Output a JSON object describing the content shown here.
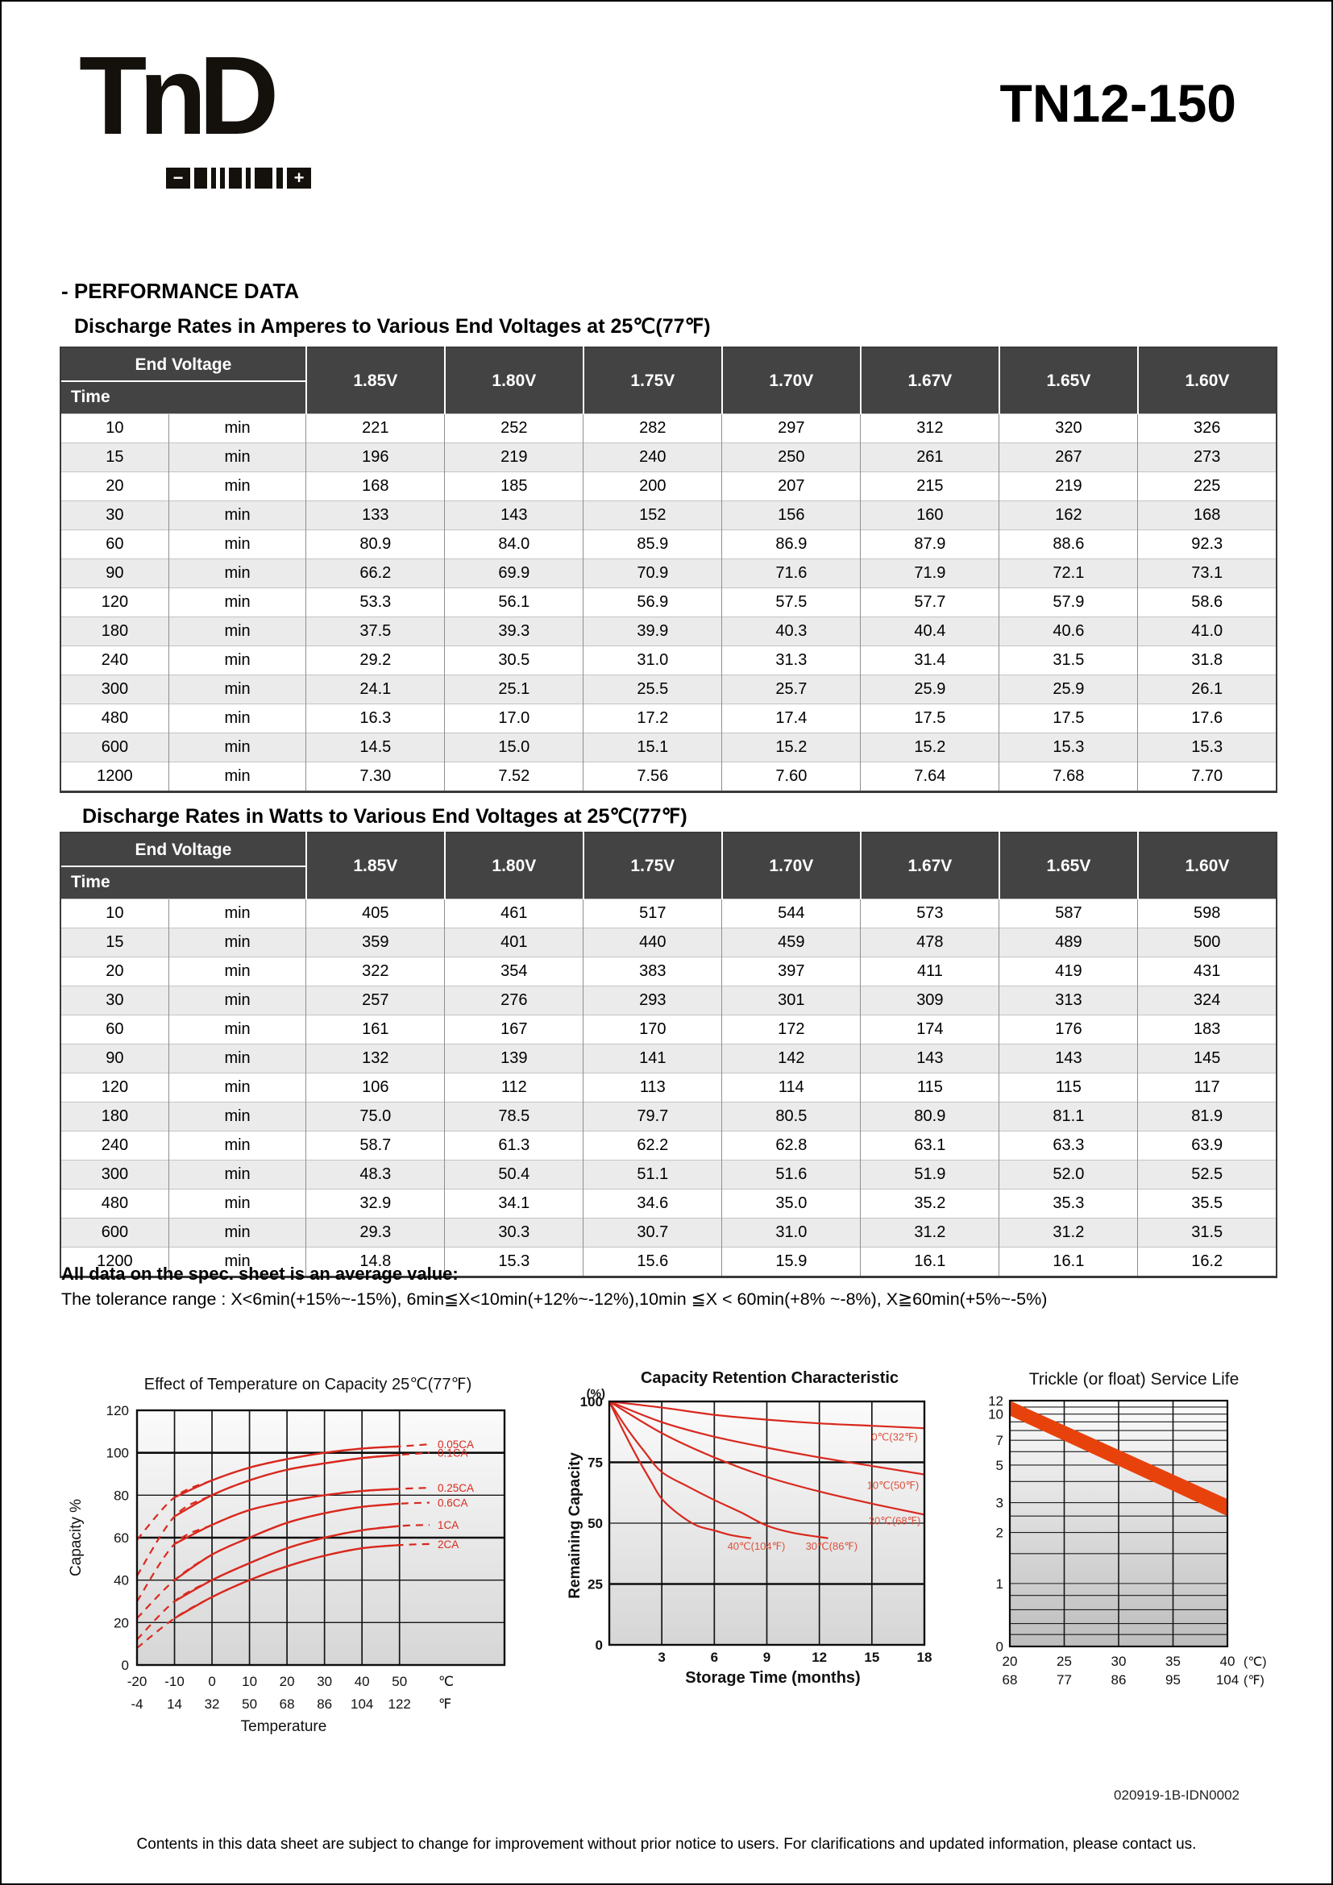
{
  "page": {
    "logo_text": "TnD",
    "logo_minus": "−",
    "logo_plus": "+",
    "product_code": "TN12-150",
    "section_heading": "- PERFORMANCE DATA"
  },
  "notes": {
    "average_line": "All data on the spec. sheet is an average value:",
    "tolerance_line": "The tolerance range : X<6min(+15%~-15%), 6min≦X<10min(+12%~-12%),10min  ≦X < 60min(+8% ~-8%), X≧60min(+5%~-5%)"
  },
  "footer": {
    "doc_number": "020919-1B-IDN0002",
    "disclaimer": "Contents in this data sheet are subject to change for improvement without prior notice to users. For clarifications and updated information, please contact us."
  },
  "tables": [
    {
      "title": "Discharge Rates in Amperes to Various End Voltages at 25℃(77℉)",
      "corner_top": "End Voltage",
      "corner_bottom": "Time",
      "columns": [
        "1.85V",
        "1.80V",
        "1.75V",
        "1.70V",
        "1.67V",
        "1.65V",
        "1.60V"
      ],
      "rows": [
        {
          "time": "10",
          "unit": "min",
          "values": [
            "221",
            "252",
            "282",
            "297",
            "312",
            "320",
            "326"
          ]
        },
        {
          "time": "15",
          "unit": "min",
          "values": [
            "196",
            "219",
            "240",
            "250",
            "261",
            "267",
            "273"
          ]
        },
        {
          "time": "20",
          "unit": "min",
          "values": [
            "168",
            "185",
            "200",
            "207",
            "215",
            "219",
            "225"
          ]
        },
        {
          "time": "30",
          "unit": "min",
          "values": [
            "133",
            "143",
            "152",
            "156",
            "160",
            "162",
            "168"
          ]
        },
        {
          "time": "60",
          "unit": "min",
          "values": [
            "80.9",
            "84.0",
            "85.9",
            "86.9",
            "87.9",
            "88.6",
            "92.3"
          ]
        },
        {
          "time": "90",
          "unit": "min",
          "values": [
            "66.2",
            "69.9",
            "70.9",
            "71.6",
            "71.9",
            "72.1",
            "73.1"
          ]
        },
        {
          "time": "120",
          "unit": "min",
          "values": [
            "53.3",
            "56.1",
            "56.9",
            "57.5",
            "57.7",
            "57.9",
            "58.6"
          ]
        },
        {
          "time": "180",
          "unit": "min",
          "values": [
            "37.5",
            "39.3",
            "39.9",
            "40.3",
            "40.4",
            "40.6",
            "41.0"
          ]
        },
        {
          "time": "240",
          "unit": "min",
          "values": [
            "29.2",
            "30.5",
            "31.0",
            "31.3",
            "31.4",
            "31.5",
            "31.8"
          ]
        },
        {
          "time": "300",
          "unit": "min",
          "values": [
            "24.1",
            "25.1",
            "25.5",
            "25.7",
            "25.9",
            "25.9",
            "26.1"
          ]
        },
        {
          "time": "480",
          "unit": "min",
          "values": [
            "16.3",
            "17.0",
            "17.2",
            "17.4",
            "17.5",
            "17.5",
            "17.6"
          ]
        },
        {
          "time": "600",
          "unit": "min",
          "values": [
            "14.5",
            "15.0",
            "15.1",
            "15.2",
            "15.2",
            "15.3",
            "15.3"
          ]
        },
        {
          "time": "1200",
          "unit": "min",
          "values": [
            "7.30",
            "7.52",
            "7.56",
            "7.60",
            "7.64",
            "7.68",
            "7.70"
          ]
        }
      ]
    },
    {
      "title": "Discharge Rates in Watts to Various End Voltages at 25℃(77℉)",
      "corner_top": "End Voltage",
      "corner_bottom": "Time",
      "columns": [
        "1.85V",
        "1.80V",
        "1.75V",
        "1.70V",
        "1.67V",
        "1.65V",
        "1.60V"
      ],
      "rows": [
        {
          "time": "10",
          "unit": "min",
          "values": [
            "405",
            "461",
            "517",
            "544",
            "573",
            "587",
            "598"
          ]
        },
        {
          "time": "15",
          "unit": "min",
          "values": [
            "359",
            "401",
            "440",
            "459",
            "478",
            "489",
            "500"
          ]
        },
        {
          "time": "20",
          "unit": "min",
          "values": [
            "322",
            "354",
            "383",
            "397",
            "411",
            "419",
            "431"
          ]
        },
        {
          "time": "30",
          "unit": "min",
          "values": [
            "257",
            "276",
            "293",
            "301",
            "309",
            "313",
            "324"
          ]
        },
        {
          "time": "60",
          "unit": "min",
          "values": [
            "161",
            "167",
            "170",
            "172",
            "174",
            "176",
            "183"
          ]
        },
        {
          "time": "90",
          "unit": "min",
          "values": [
            "132",
            "139",
            "141",
            "142",
            "143",
            "143",
            "145"
          ]
        },
        {
          "time": "120",
          "unit": "min",
          "values": [
            "106",
            "112",
            "113",
            "114",
            "115",
            "115",
            "117"
          ]
        },
        {
          "time": "180",
          "unit": "min",
          "values": [
            "75.0",
            "78.5",
            "79.7",
            "80.5",
            "80.9",
            "81.1",
            "81.9"
          ]
        },
        {
          "time": "240",
          "unit": "min",
          "values": [
            "58.7",
            "61.3",
            "62.2",
            "62.8",
            "63.1",
            "63.3",
            "63.9"
          ]
        },
        {
          "time": "300",
          "unit": "min",
          "values": [
            "48.3",
            "50.4",
            "51.1",
            "51.6",
            "51.9",
            "52.0",
            "52.5"
          ]
        },
        {
          "time": "480",
          "unit": "min",
          "values": [
            "32.9",
            "34.1",
            "34.6",
            "35.0",
            "35.2",
            "35.3",
            "35.5"
          ]
        },
        {
          "time": "600",
          "unit": "min",
          "values": [
            "29.3",
            "30.3",
            "30.7",
            "31.0",
            "31.2",
            "31.2",
            "31.5"
          ]
        },
        {
          "time": "1200",
          "unit": "min",
          "values": [
            "14.8",
            "15.3",
            "15.6",
            "15.9",
            "16.1",
            "16.1",
            "16.2"
          ]
        }
      ]
    }
  ],
  "chart_data": [
    {
      "type": "line",
      "title": "Effect of Temperature on Capacity  25℃(77℉)",
      "xlabel": "Temperature",
      "ylabel": "Capacity %",
      "xlim": [
        -20,
        78
      ],
      "ylim": [
        0,
        120
      ],
      "yticks": [
        0,
        20,
        40,
        60,
        80,
        100,
        120
      ],
      "grid_y_thin": [
        20,
        40,
        80
      ],
      "grid_y_thick": [
        60,
        100
      ],
      "x_axis_rows": [
        {
          "unit": "℃",
          "ticks": [
            "-20",
            "-10",
            "0",
            "10",
            "20",
            "30",
            "40",
            "50"
          ]
        },
        {
          "unit": "℉",
          "ticks": [
            "-4",
            "14",
            "32",
            "50",
            "68",
            "86",
            "104",
            "122"
          ]
        }
      ],
      "x_tick_values": [
        -20,
        -10,
        0,
        10,
        20,
        30,
        40,
        50
      ],
      "line_color": "#d9281e",
      "series": [
        {
          "name": "0.05CA",
          "points": [
            [
              -20,
              59
            ],
            [
              -10,
              79
            ],
            [
              0,
              87
            ],
            [
              10,
              93
            ],
            [
              20,
              97
            ],
            [
              30,
              100
            ],
            [
              40,
              102
            ],
            [
              50,
              103
            ],
            [
              58,
              104
            ]
          ]
        },
        {
          "name": "0.1CA",
          "points": [
            [
              -20,
              42
            ],
            [
              -10,
              70
            ],
            [
              0,
              80
            ],
            [
              10,
              87
            ],
            [
              20,
              92
            ],
            [
              30,
              95
            ],
            [
              40,
              97.5
            ],
            [
              50,
              99
            ],
            [
              58,
              100
            ]
          ]
        },
        {
          "name": "0.25CA",
          "points": [
            [
              -20,
              30
            ],
            [
              -10,
              57
            ],
            [
              0,
              66
            ],
            [
              10,
              73
            ],
            [
              20,
              77
            ],
            [
              30,
              80
            ],
            [
              40,
              82
            ],
            [
              50,
              83
            ],
            [
              58,
              83.5
            ]
          ]
        },
        {
          "name": "0.6CA",
          "points": [
            [
              -20,
              22
            ],
            [
              -10,
              40
            ],
            [
              0,
              52
            ],
            [
              10,
              60
            ],
            [
              20,
              67
            ],
            [
              30,
              71.5
            ],
            [
              40,
              74.5
            ],
            [
              50,
              76
            ],
            [
              58,
              76.5
            ]
          ]
        },
        {
          "name": "1CA",
          "points": [
            [
              -20,
              12
            ],
            [
              -10,
              30
            ],
            [
              0,
              40
            ],
            [
              10,
              48
            ],
            [
              20,
              55
            ],
            [
              30,
              60
            ],
            [
              40,
              63.5
            ],
            [
              50,
              65.5
            ],
            [
              58,
              66
            ]
          ]
        },
        {
          "name": "2CA",
          "points": [
            [
              -20,
              8
            ],
            [
              -10,
              22
            ],
            [
              0,
              32
            ],
            [
              10,
              40
            ],
            [
              20,
              46.5
            ],
            [
              30,
              51.5
            ],
            [
              40,
              55
            ],
            [
              50,
              56.5
            ],
            [
              58,
              57
            ]
          ]
        }
      ]
    },
    {
      "type": "line",
      "title": "Capacity Retention Characteristic",
      "xlabel": "Storage Time (months)",
      "ylabel": "Remaining Capacity",
      "y_unit": "(%)",
      "xlim": [
        0,
        18
      ],
      "ylim": [
        0,
        100
      ],
      "xticks": [
        3,
        6,
        9,
        12,
        15,
        18
      ],
      "yticks": [
        0,
        25,
        50,
        75,
        100
      ],
      "grid_y_thick": [
        25,
        75
      ],
      "grid_y_thin": [
        50
      ],
      "line_color": "#d9281e",
      "label_color": "#e0503c",
      "series": [
        {
          "name": "0℃(32℉)",
          "label_at": [
            16.3,
            84
          ],
          "points": [
            [
              0,
              100
            ],
            [
              3,
              97.5
            ],
            [
              6,
              94.5
            ],
            [
              9,
              92.5
            ],
            [
              12,
              91
            ],
            [
              15,
              90
            ],
            [
              18,
              89
            ]
          ]
        },
        {
          "name": "10℃(50℉)",
          "label_at": [
            16.2,
            64
          ],
          "points": [
            [
              0,
              100
            ],
            [
              3,
              91.5
            ],
            [
              6,
              85.5
            ],
            [
              9,
              81
            ],
            [
              12,
              77
            ],
            [
              15,
              73.5
            ],
            [
              18,
              70
            ]
          ]
        },
        {
          "name": "20℃(68℉)",
          "label_at": [
            16.3,
            49.5
          ],
          "points": [
            [
              0,
              100
            ],
            [
              3,
              87
            ],
            [
              6,
              77
            ],
            [
              9,
              69
            ],
            [
              12,
              63
            ],
            [
              15,
              58
            ],
            [
              18,
              53.5
            ]
          ]
        },
        {
          "name": "30℃(86℉)",
          "label_at": [
            12.7,
            39
          ],
          "points": [
            [
              0,
              100
            ],
            [
              1,
              89
            ],
            [
              2,
              79.5
            ],
            [
              3,
              71
            ],
            [
              4.5,
              65
            ],
            [
              6,
              59.5
            ],
            [
              7.5,
              54.5
            ],
            [
              9,
              49
            ],
            [
              10.5,
              46
            ],
            [
              12.5,
              43.8
            ]
          ]
        },
        {
          "name": "40℃(104℉)",
          "label_at": [
            8.4,
            39
          ],
          "points": [
            [
              0,
              100
            ],
            [
              0.8,
              88
            ],
            [
              1.6,
              77
            ],
            [
              2.4,
              67
            ],
            [
              3,
              60
            ],
            [
              4,
              53.5
            ],
            [
              5,
              49
            ],
            [
              6,
              47
            ],
            [
              7,
              45
            ],
            [
              8.1,
              43.8
            ]
          ]
        }
      ]
    },
    {
      "type": "band",
      "title": "Trickle (or float) Service Life",
      "xlim": [
        20,
        40
      ],
      "ylim_log": [
        0.425,
        12
      ],
      "yticks": [
        12,
        10,
        7,
        5,
        3,
        2,
        1,
        0
      ],
      "grid_y": [
        11,
        10,
        9,
        8,
        7,
        6,
        5,
        4,
        3,
        2.5,
        2,
        1.5,
        1,
        0.85,
        0.7,
        0.58,
        0.5
      ],
      "grid_x": [
        25,
        30,
        35
      ],
      "x_axis_rows": [
        {
          "unit": "(℃)",
          "ticks": [
            "20",
            "25",
            "30",
            "35",
            "40"
          ]
        },
        {
          "unit": "(℉)",
          "ticks": [
            "68",
            "77",
            "86",
            "95",
            "104"
          ]
        }
      ],
      "x_tick_values": [
        20,
        25,
        30,
        35,
        40
      ],
      "band": {
        "color": "#e8420c",
        "top": [
          [
            20,
            12
          ],
          [
            40,
            3.15
          ]
        ],
        "bottom": [
          [
            20,
            9.8
          ],
          [
            40,
            2.5
          ]
        ]
      }
    }
  ]
}
